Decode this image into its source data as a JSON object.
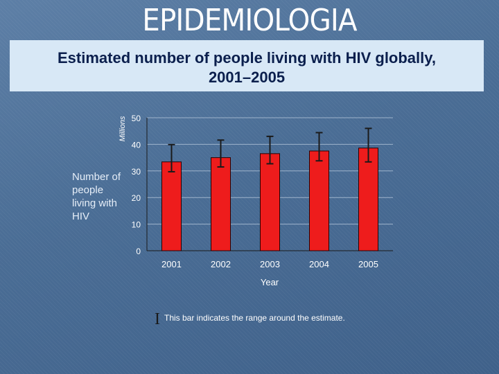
{
  "slide": {
    "title": "EPIDEMIOLOGIA",
    "subtitle_line1": "Estimated number of people living with HIV globally,",
    "subtitle_line2": "2001–2005"
  },
  "colors": {
    "background": "#4a6d95",
    "banner": "#d8e8f6",
    "bar": "#ee1c1c",
    "text_light": "#ffffff"
  },
  "chart_data": {
    "type": "bar",
    "categories": [
      "2001",
      "2002",
      "2003",
      "2004",
      "2005"
    ],
    "values": [
      33.4,
      35.0,
      36.5,
      37.5,
      38.6
    ],
    "ranges": [
      [
        29.7,
        39.9
      ],
      [
        31.5,
        41.6
      ],
      [
        32.7,
        43.0
      ],
      [
        33.8,
        44.4
      ],
      [
        33.4,
        46.0
      ]
    ],
    "y_ticks": [
      "0",
      "10",
      "20",
      "30",
      "40",
      "50"
    ],
    "ylim": [
      0,
      50
    ],
    "xlabel": "Year",
    "yunit_label": "Millions",
    "ylabel": "Number of people living with HIV",
    "legend_symbol": "I",
    "legend_text": "This bar indicates the range around the estimate.",
    "grid": true,
    "legend_position": "bottom"
  }
}
